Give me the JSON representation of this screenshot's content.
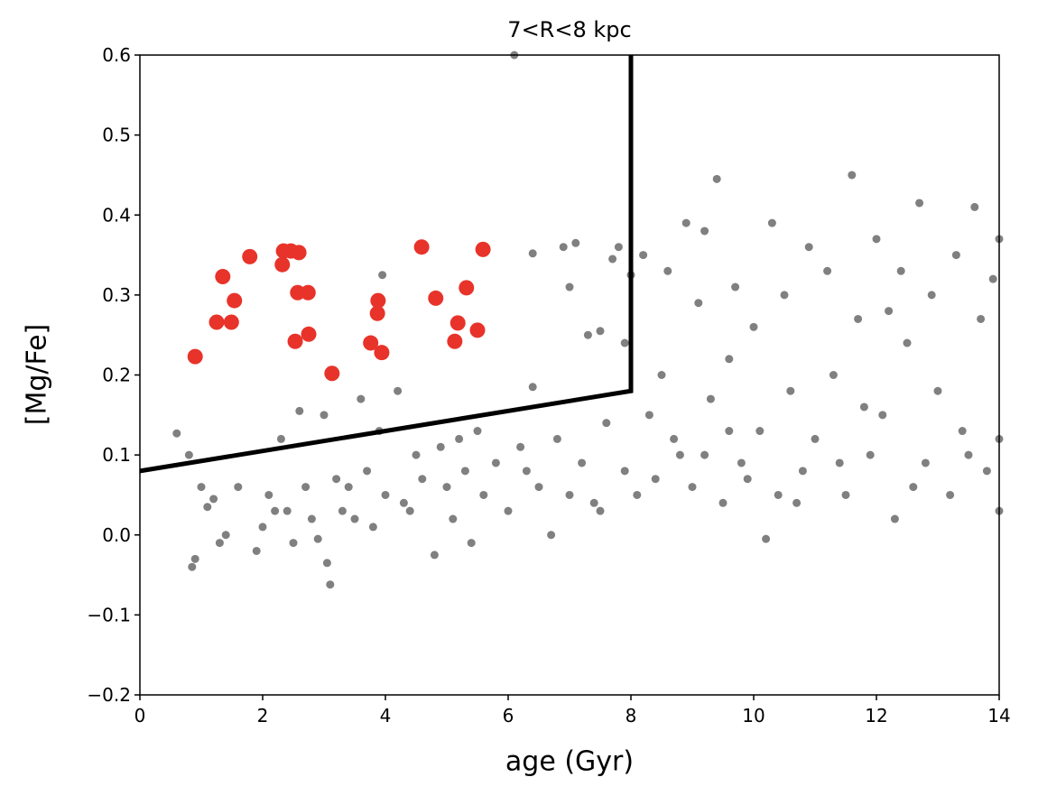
{
  "chart_data": {
    "type": "scatter",
    "title": "7<R<8 kpc",
    "x_label": "age (Gyr)",
    "y_label": "[Mg/Fe]",
    "xlim": [
      0,
      14
    ],
    "ylim": [
      -0.2,
      0.6
    ],
    "xticks": [
      0,
      2,
      4,
      6,
      8,
      10,
      12,
      14
    ],
    "yticks": [
      {
        "value": -0.2,
        "label": "−0.2"
      },
      {
        "value": -0.1,
        "label": "−0.1"
      },
      {
        "value": 0,
        "label": "0.0"
      },
      0.1,
      0.2,
      0.3,
      0.4,
      0.5,
      0.6
    ],
    "series": [
      {
        "color": "#808080",
        "x": [
          0.6,
          0.85,
          0.9,
          1.0,
          0.8,
          1.1,
          1.2,
          1.3,
          1.4,
          1.6,
          1.9,
          2.0,
          2.1,
          2.2,
          2.3,
          2.4,
          2.5,
          2.6,
          2.7,
          2.8,
          2.9,
          3.0,
          3.05,
          3.1,
          3.2,
          3.3,
          3.4,
          3.5,
          3.6,
          3.7,
          3.8,
          3.9,
          3.95,
          4.0,
          4.2,
          4.3,
          4.5,
          4.6,
          4.8,
          4.9,
          5.0,
          5.1,
          5.3,
          5.4,
          5.5,
          5.6,
          5.8,
          6.0,
          6.1,
          6.2,
          6.4,
          6.4,
          6.5,
          6.7,
          6.8,
          6.9,
          7.0,
          7.0,
          7.1,
          7.2,
          7.3,
          7.4,
          7.5,
          7.6,
          7.7,
          7.8,
          7.9,
          7.9,
          8.0,
          8.2,
          8.3,
          8.4,
          8.5,
          8.6,
          8.8,
          8.9,
          9.0,
          9.1,
          9.2,
          9.3,
          9.4,
          9.5,
          9.6,
          9.7,
          9.8,
          10.0,
          10.1,
          10.2,
          10.3,
          10.4,
          10.5,
          10.6,
          10.8,
          10.9,
          11.0,
          11.2,
          11.3,
          11.5,
          11.6,
          11.7,
          11.9,
          12.0,
          12.1,
          12.3,
          12.4,
          12.5,
          12.7,
          12.8,
          12.9,
          13.0,
          13.2,
          13.3,
          13.4,
          13.6,
          13.7,
          13.8,
          13.9,
          14.0,
          14.0,
          14.0,
          6.3,
          7.5,
          8.1,
          8.7,
          9.2,
          9.9,
          10.7,
          11.4,
          12.6,
          13.5,
          5.2,
          4.4,
          9.6,
          11.8,
          12.2
        ],
        "values": [
          0.127,
          -0.04,
          -0.03,
          0.06,
          0.1,
          0.035,
          0.045,
          -0.01,
          0.0,
          0.06,
          -0.02,
          0.01,
          0.05,
          0.03,
          0.12,
          0.03,
          -0.01,
          0.155,
          0.06,
          0.02,
          -0.005,
          0.15,
          -0.035,
          -0.062,
          0.07,
          0.03,
          0.06,
          0.02,
          0.17,
          0.08,
          0.01,
          0.13,
          0.325,
          0.05,
          0.18,
          0.04,
          0.1,
          0.07,
          -0.025,
          0.11,
          0.06,
          0.02,
          0.08,
          -0.01,
          0.13,
          0.05,
          0.09,
          0.03,
          0.6,
          0.11,
          0.352,
          0.185,
          0.06,
          0.0,
          0.12,
          0.36,
          0.31,
          0.05,
          0.365,
          0.09,
          0.25,
          0.04,
          0.255,
          0.14,
          0.345,
          0.36,
          0.24,
          0.08,
          0.325,
          0.35,
          0.15,
          0.07,
          0.2,
          0.33,
          0.1,
          0.39,
          0.06,
          0.29,
          0.38,
          0.17,
          0.445,
          0.04,
          0.22,
          0.31,
          0.09,
          0.26,
          0.13,
          -0.005,
          0.39,
          0.05,
          0.3,
          0.18,
          0.08,
          0.36,
          0.12,
          0.33,
          0.2,
          0.05,
          0.45,
          0.27,
          0.1,
          0.37,
          0.15,
          0.02,
          0.33,
          0.24,
          0.415,
          0.09,
          0.3,
          0.18,
          0.05,
          0.35,
          0.13,
          0.41,
          0.27,
          0.08,
          0.32,
          0.37,
          0.12,
          0.03,
          0.08,
          0.03,
          0.05,
          0.12,
          0.1,
          0.07,
          0.04,
          0.09,
          0.06,
          0.1,
          0.12,
          0.03,
          0.13,
          0.16,
          0.28
        ]
      },
      {
        "color": "#e8332a",
        "x": [
          0.9,
          1.35,
          1.25,
          1.49,
          1.54,
          1.79,
          2.34,
          2.32,
          2.46,
          2.59,
          2.57,
          2.74,
          2.75,
          2.53,
          3.13,
          3.76,
          3.87,
          3.88,
          3.94,
          4.59,
          4.82,
          5.18,
          5.32,
          5.13,
          5.5,
          5.59
        ],
        "values": [
          0.223,
          0.323,
          0.266,
          0.266,
          0.293,
          0.348,
          0.355,
          0.338,
          0.355,
          0.353,
          0.303,
          0.303,
          0.251,
          0.242,
          0.202,
          0.24,
          0.277,
          0.293,
          0.228,
          0.36,
          0.296,
          0.265,
          0.309,
          0.242,
          0.256,
          0.357
        ]
      }
    ],
    "boundary": {
      "color": "#000000",
      "x": [
        0,
        8,
        8
      ],
      "values": [
        0.08,
        0.18,
        0.6
      ]
    }
  }
}
